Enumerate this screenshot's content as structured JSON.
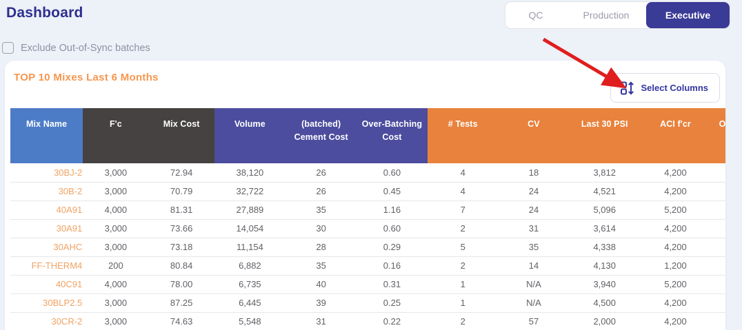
{
  "page": {
    "title": "Dashboard"
  },
  "tabs": [
    {
      "label": "QC",
      "active": false
    },
    {
      "label": "Production",
      "active": false
    },
    {
      "label": "Executive",
      "active": true
    }
  ],
  "filter": {
    "label": "Exclude Out-of-Sync batches",
    "checked": false
  },
  "card": {
    "title": "TOP 10 Mixes Last 6 Months",
    "select_columns_label": "Select Columns"
  },
  "table": {
    "columns": [
      {
        "label": "Mix Name",
        "group": "blue",
        "truncated": false
      },
      {
        "label": "F'c",
        "group": "dark",
        "truncated": false
      },
      {
        "label": "Mix Cost",
        "group": "dark",
        "truncated": false
      },
      {
        "label": "Volume",
        "group": "indigo",
        "truncated": false
      },
      {
        "label": "(batched) Cement Cost",
        "group": "indigo",
        "truncated": false
      },
      {
        "label": "Over-Batching Cost",
        "group": "indigo",
        "truncated": false
      },
      {
        "label": "# Tests",
        "group": "orange",
        "truncated": false
      },
      {
        "label": "CV",
        "group": "orange",
        "truncated": false
      },
      {
        "label": "Last 30 PSI",
        "group": "orange",
        "truncated": false
      },
      {
        "label": "ACI f'cr",
        "group": "orange",
        "truncated": false
      },
      {
        "label": "Ov",
        "group": "orange",
        "truncated": true
      }
    ],
    "rows": [
      [
        "30BJ-2",
        "3,000",
        "72.94",
        "38,120",
        "26",
        "0.60",
        "4",
        "18",
        "3,812",
        "4,200",
        ""
      ],
      [
        "30B-2",
        "3,000",
        "70.79",
        "32,722",
        "26",
        "0.45",
        "4",
        "24",
        "4,521",
        "4,200",
        ""
      ],
      [
        "40A91",
        "4,000",
        "81.31",
        "27,889",
        "35",
        "1.16",
        "7",
        "24",
        "5,096",
        "5,200",
        ""
      ],
      [
        "30A91",
        "3,000",
        "73.66",
        "14,054",
        "30",
        "0.60",
        "2",
        "31",
        "3,614",
        "4,200",
        ""
      ],
      [
        "30AHC",
        "3,000",
        "73.18",
        "11,154",
        "28",
        "0.29",
        "5",
        "35",
        "4,338",
        "4,200",
        ""
      ],
      [
        "FF-THERM4",
        "200",
        "80.84",
        "6,882",
        "35",
        "0.16",
        "2",
        "14",
        "4,130",
        "1,200",
        ""
      ],
      [
        "40C91",
        "4,000",
        "78.00",
        "6,735",
        "40",
        "0.31",
        "1",
        "N/A",
        "3,940",
        "5,200",
        ""
      ],
      [
        "30BLP2.5",
        "3,000",
        "87.25",
        "6,445",
        "39",
        "0.25",
        "1",
        "N/A",
        "4,500",
        "4,200",
        ""
      ],
      [
        "30CR-2",
        "3,000",
        "74.63",
        "5,548",
        "31",
        "0.22",
        "2",
        "57",
        "2,000",
        "4,200",
        ""
      ]
    ]
  },
  "colors": {
    "page_background": "#edf1f8",
    "title_navy": "#2d2f8e",
    "tab_active_bg": "#3a3b96",
    "card_title_orange": "#f7964d",
    "header_blue": "#4d7cc7",
    "header_dark": "#454241",
    "header_indigo": "#4c4d9e",
    "header_orange": "#e8823d",
    "mix_link_orange": "#f0a263",
    "annotation_arrow_red": "#e01e1e"
  }
}
